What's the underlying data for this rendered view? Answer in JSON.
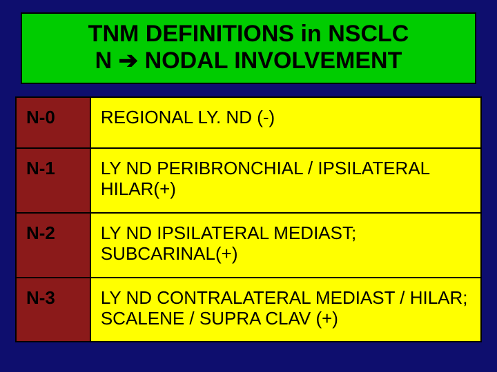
{
  "title": {
    "line1": "TNM DEFINITIONS in NSCLC",
    "line2_pre": "N ",
    "line2_arrow": "➔",
    "line2_post": " NODAL INVOLVEMENT"
  },
  "table": {
    "rows": [
      {
        "code": "N-0",
        "desc": "REGIONAL LY. ND (-)"
      },
      {
        "code": "N-1",
        "desc": "LY ND PERIBRONCHIAL / IPSILATERAL HILAR(+)"
      },
      {
        "code": "N-2",
        "desc": "LY ND IPSILATERAL MEDIAST; SUBCARINAL(+)"
      },
      {
        "code": "N-3",
        "desc": "LY ND CONTRALATERAL MEDIAST / HILAR; SCALENE / SUPRA CLAV (+)"
      }
    ]
  },
  "colors": {
    "background": "#0e0e6e",
    "title_bg": "#00cc00",
    "code_bg": "#8b1a1a",
    "desc_bg": "#ffff00",
    "border": "#000000",
    "text": "#000000"
  },
  "fonts": {
    "title_size_pt": 26,
    "body_size_pt": 20,
    "family": "Arial"
  }
}
